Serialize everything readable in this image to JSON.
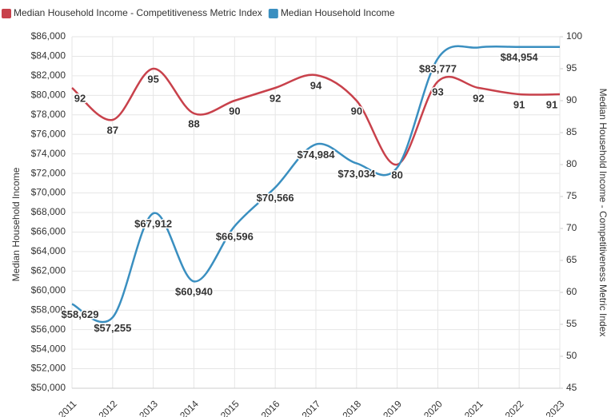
{
  "chart_data": {
    "type": "line",
    "categories": [
      "2011",
      "2012",
      "2013",
      "2014",
      "2015",
      "2016",
      "2017",
      "2018",
      "2019",
      "2020",
      "2021",
      "2022",
      "2023"
    ],
    "series": [
      {
        "name": "Median Household Income - Competitiveness Metric Index",
        "color": "#c8414b",
        "axis": "y2",
        "values": [
          92,
          87,
          95,
          88,
          90,
          92,
          94,
          90,
          80,
          93,
          92,
          91,
          91
        ]
      },
      {
        "name": "Median Household Income",
        "color": "#3a8fc0",
        "axis": "y",
        "values": [
          58629,
          57255,
          67912,
          60940,
          66596,
          70566,
          74984,
          73034,
          72600,
          83777,
          84900,
          84954,
          84954
        ],
        "value_labels": [
          "$58,629",
          "$57,255",
          "$67,912",
          "$60,940",
          "$66,596",
          "$70,566",
          "$74,984",
          "$73,034",
          null,
          "$83,777",
          null,
          "$84,954",
          null
        ]
      }
    ],
    "ylabel": "Median Household Income",
    "y2label": "Median Household Income - Competitiveness Metric Index",
    "ylim": [
      50000,
      86000
    ],
    "yticks": [
      {
        "value": 50000,
        "label": "$50,000"
      },
      {
        "value": 52000,
        "label": "$52,000"
      },
      {
        "value": 54000,
        "label": "$54,000"
      },
      {
        "value": 56000,
        "label": "$56,000"
      },
      {
        "value": 58000,
        "label": "$58,000"
      },
      {
        "value": 60000,
        "label": "$60,000"
      },
      {
        "value": 62000,
        "label": "$62,000"
      },
      {
        "value": 64000,
        "label": "$64,000"
      },
      {
        "value": 66000,
        "label": "$66,000"
      },
      {
        "value": 68000,
        "label": "$68,000"
      },
      {
        "value": 70000,
        "label": "$70,000"
      },
      {
        "value": 72000,
        "label": "$72,000"
      },
      {
        "value": 74000,
        "label": "$74,000"
      },
      {
        "value": 76000,
        "label": "$76,000"
      },
      {
        "value": 78000,
        "label": "$78,000"
      },
      {
        "value": 80000,
        "label": "$80,000"
      },
      {
        "value": 82000,
        "label": "$82,000"
      },
      {
        "value": 84000,
        "label": "$84,000"
      },
      {
        "value": 86000,
        "label": "$86,000"
      }
    ],
    "y2lim": [
      45,
      100
    ],
    "y2ticks": [
      45,
      50,
      55,
      60,
      65,
      70,
      75,
      80,
      85,
      90,
      95,
      100
    ],
    "grid": true
  }
}
